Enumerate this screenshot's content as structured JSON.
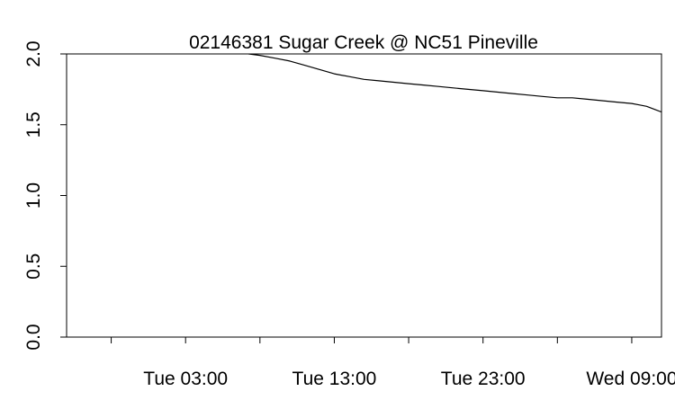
{
  "chart_data": {
    "type": "line",
    "title": "02146381 Sugar Creek @ NC51 Pineville",
    "xlabel": "",
    "ylabel": "",
    "x_unit": "hours",
    "xlim": [
      -3,
      37
    ],
    "ylim": [
      0,
      2
    ],
    "x_ticks": [
      {
        "value": 0,
        "label": ""
      },
      {
        "value": 5,
        "label": "Tue 03:00"
      },
      {
        "value": 10,
        "label": ""
      },
      {
        "value": 15,
        "label": "Tue 13:00"
      },
      {
        "value": 20,
        "label": ""
      },
      {
        "value": 25,
        "label": "Tue 23:00"
      },
      {
        "value": 30,
        "label": ""
      },
      {
        "value": 35,
        "label": "Wed 09:00"
      }
    ],
    "y_ticks": [
      {
        "value": 0,
        "label": "0.0"
      },
      {
        "value": 0.5,
        "label": "0.5"
      },
      {
        "value": 1.0,
        "label": "1.0"
      },
      {
        "value": 1.5,
        "label": "1.5"
      },
      {
        "value": 2.0,
        "label": "2.0"
      }
    ],
    "grid": false,
    "series": [
      {
        "color": "#000000",
        "x": [
          -3,
          1,
          4,
          6,
          8,
          9.25,
          10,
          11,
          12,
          13,
          14,
          15,
          16,
          17,
          18,
          19,
          20,
          21,
          22,
          23,
          24,
          25,
          26,
          27,
          28,
          29,
          30,
          31,
          32,
          33,
          34,
          35,
          35.5,
          36,
          36.5,
          37
        ],
        "y": [
          2.25,
          2.2,
          2.13,
          2.07,
          2.03,
          2.0,
          1.99,
          1.97,
          1.95,
          1.92,
          1.89,
          1.86,
          1.84,
          1.82,
          1.81,
          1.8,
          1.79,
          1.78,
          1.77,
          1.76,
          1.75,
          1.74,
          1.73,
          1.72,
          1.71,
          1.7,
          1.69,
          1.69,
          1.68,
          1.67,
          1.66,
          1.65,
          1.64,
          1.63,
          1.61,
          1.59
        ]
      }
    ]
  }
}
